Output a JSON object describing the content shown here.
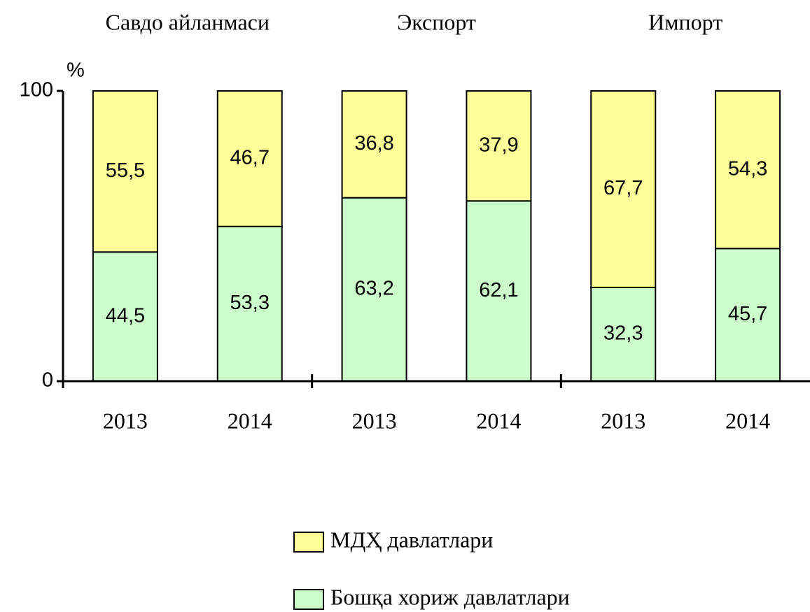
{
  "chart_data": {
    "type": "stacked_bar",
    "groups": [
      "Савдо айланмаси",
      "Экспорт",
      "Импорт"
    ],
    "categories": [
      "2013",
      "2014",
      "2013",
      "2014",
      "2013",
      "2014"
    ],
    "y_label": "%",
    "ylim": [
      0,
      100
    ],
    "yticks": [
      0,
      100
    ],
    "series": [
      {
        "name": "Бошқа хориж давлатлари",
        "color": "#ccffcc",
        "values": [
          44.5,
          53.3,
          63.2,
          62.1,
          32.3,
          45.7
        ],
        "value_labels": [
          "44,5",
          "53,3",
          "63,2",
          "62,1",
          "32,3",
          "45,7"
        ]
      },
      {
        "name": "МДҲ давлатлари",
        "color": "#ffff99",
        "values": [
          55.5,
          46.7,
          36.8,
          37.9,
          67.7,
          54.3
        ],
        "value_labels": [
          "55,5",
          "46,7",
          "36,8",
          "37,9",
          "67,7",
          "54,3"
        ]
      }
    ]
  }
}
